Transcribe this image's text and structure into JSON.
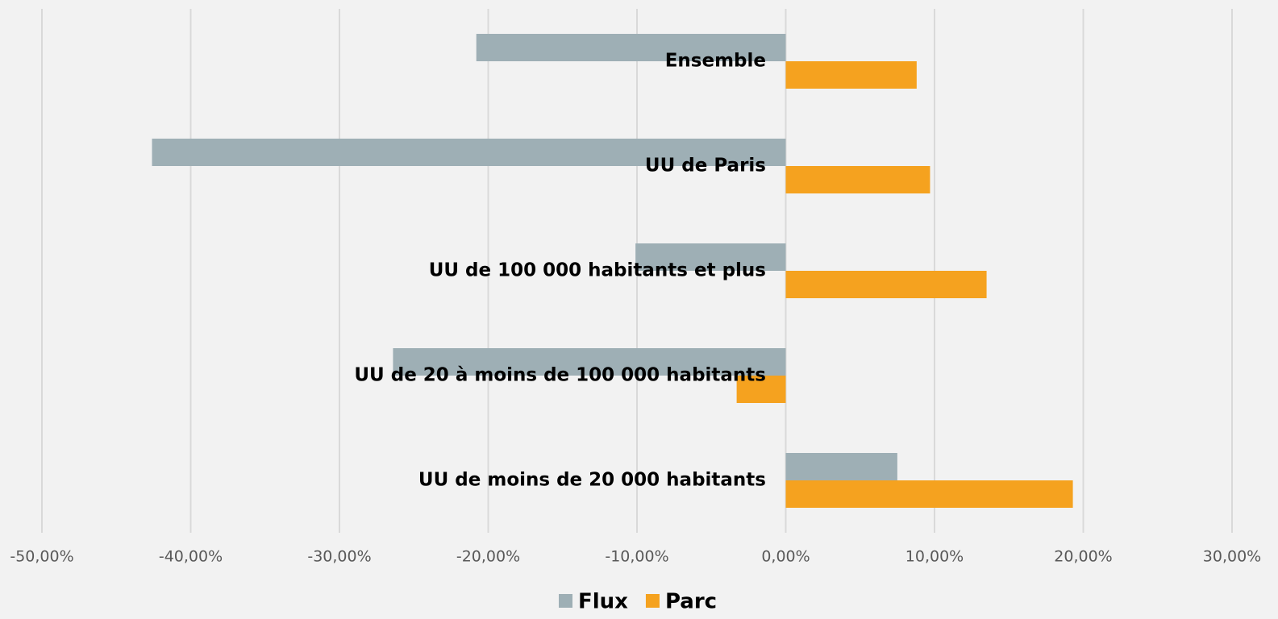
{
  "chart_data": {
    "type": "barh",
    "categories": [
      "Ensemble",
      "UU de Paris",
      "UU de 100 000 habitants et plus",
      "UU de 20 à moins de 100 000 habitants",
      "UU de moins de 20 000 habitants"
    ],
    "series": [
      {
        "name": "Flux",
        "color": "#9eafb5",
        "values": [
          -20.8,
          -42.6,
          -10.1,
          -26.4,
          7.5
        ]
      },
      {
        "name": "Parc",
        "color": "#f5a21f",
        "values": [
          8.8,
          9.7,
          13.5,
          -3.3,
          19.3
        ]
      }
    ],
    "xlim": [
      -50,
      30
    ],
    "xticks": [
      {
        "value": -50,
        "label": "-50,00%"
      },
      {
        "value": -40,
        "label": "-40,00%"
      },
      {
        "value": -30,
        "label": "-30,00%"
      },
      {
        "value": -20,
        "label": "-20,00%"
      },
      {
        "value": -10,
        "label": "-10,00%"
      },
      {
        "value": 0,
        "label": "0,00%"
      },
      {
        "value": 10,
        "label": "10,00%"
      },
      {
        "value": 20,
        "label": "20,00%"
      },
      {
        "value": 30,
        "label": "30,00%"
      }
    ],
    "grid": true,
    "legend": "bottom"
  }
}
